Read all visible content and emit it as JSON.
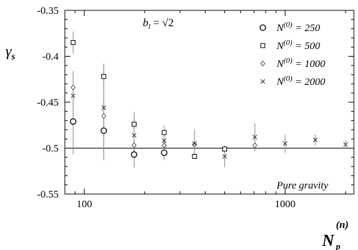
{
  "chart_data": {
    "type": "scatter",
    "xscale": "log",
    "xlim": [
      80,
      2200
    ],
    "ylim": [
      -0.55,
      -0.35
    ],
    "xticks": [
      100,
      1000
    ],
    "xtick_labels": [
      "100",
      "1000"
    ],
    "yticks": [
      -0.55,
      -0.5,
      -0.45,
      -0.4,
      -0.35
    ],
    "ytick_labels": [
      "-0.55",
      "-0.5",
      "-0.45",
      "-0.4",
      "-0.35"
    ],
    "ylabel": "γs",
    "xlabel": "Np(n)",
    "annotations": [
      "b_l = √2",
      "Pure gravity"
    ],
    "reference_line_y": -0.5,
    "grid": false,
    "legend_position": "top-right",
    "series": [
      {
        "name": "N(0) = 250",
        "marker": "circle",
        "points": [
          {
            "x": 88,
            "y": -0.471,
            "err": 0.036
          },
          {
            "x": 125,
            "y": -0.481,
            "err": 0.032
          },
          {
            "x": 177,
            "y": -0.507,
            "err": 0.014
          },
          {
            "x": 250,
            "y": -0.505,
            "err": 0.008
          }
        ]
      },
      {
        "name": "N(0) = 500",
        "marker": "square",
        "points": [
          {
            "x": 88,
            "y": -0.385,
            "err": 0.012
          },
          {
            "x": 125,
            "y": -0.422,
            "err": 0.013
          },
          {
            "x": 177,
            "y": -0.474,
            "err": 0.006
          },
          {
            "x": 250,
            "y": -0.483,
            "err": 0.005
          },
          {
            "x": 354,
            "y": -0.509,
            "err": 0.003
          },
          {
            "x": 500,
            "y": -0.501,
            "err": 0.002
          }
        ]
      },
      {
        "name": "N(0) = 1000",
        "marker": "diamond",
        "points": [
          {
            "x": 88,
            "y": -0.434,
            "err": 0.018
          },
          {
            "x": 125,
            "y": -0.465,
            "err": 0.017
          },
          {
            "x": 177,
            "y": -0.497,
            "err": 0.008
          },
          {
            "x": 250,
            "y": -0.497,
            "err": 0.006
          },
          {
            "x": 354,
            "y": -0.496,
            "err": 0.005
          },
          {
            "x": 707,
            "y": -0.497,
            "err": 0.004
          }
        ]
      },
      {
        "name": "N(0) = 2000",
        "marker": "cross",
        "points": [
          {
            "x": 88,
            "y": -0.443,
            "err": 0.022
          },
          {
            "x": 125,
            "y": -0.456,
            "err": 0.048
          },
          {
            "x": 177,
            "y": -0.486,
            "err": 0.025
          },
          {
            "x": 250,
            "y": -0.492,
            "err": 0.017
          },
          {
            "x": 354,
            "y": -0.495,
            "err": 0.015
          },
          {
            "x": 500,
            "y": -0.509,
            "err": 0.012
          },
          {
            "x": 707,
            "y": -0.488,
            "err": 0.015
          },
          {
            "x": 1000,
            "y": -0.495,
            "err": 0.01
          },
          {
            "x": 1414,
            "y": -0.491,
            "err": 0.006
          },
          {
            "x": 2000,
            "y": -0.496,
            "err": 0.005
          }
        ]
      }
    ]
  },
  "text": {
    "ylabel_main": "γ",
    "ylabel_sub": "s",
    "xlabel_main": "N",
    "xlabel_sub": "p",
    "xlabel_sup": "(n)",
    "annotation_bl_main": "b",
    "annotation_bl_sub": "l",
    "annotation_bl_rest": " = √2",
    "annotation_pure": "Pure gravity"
  }
}
